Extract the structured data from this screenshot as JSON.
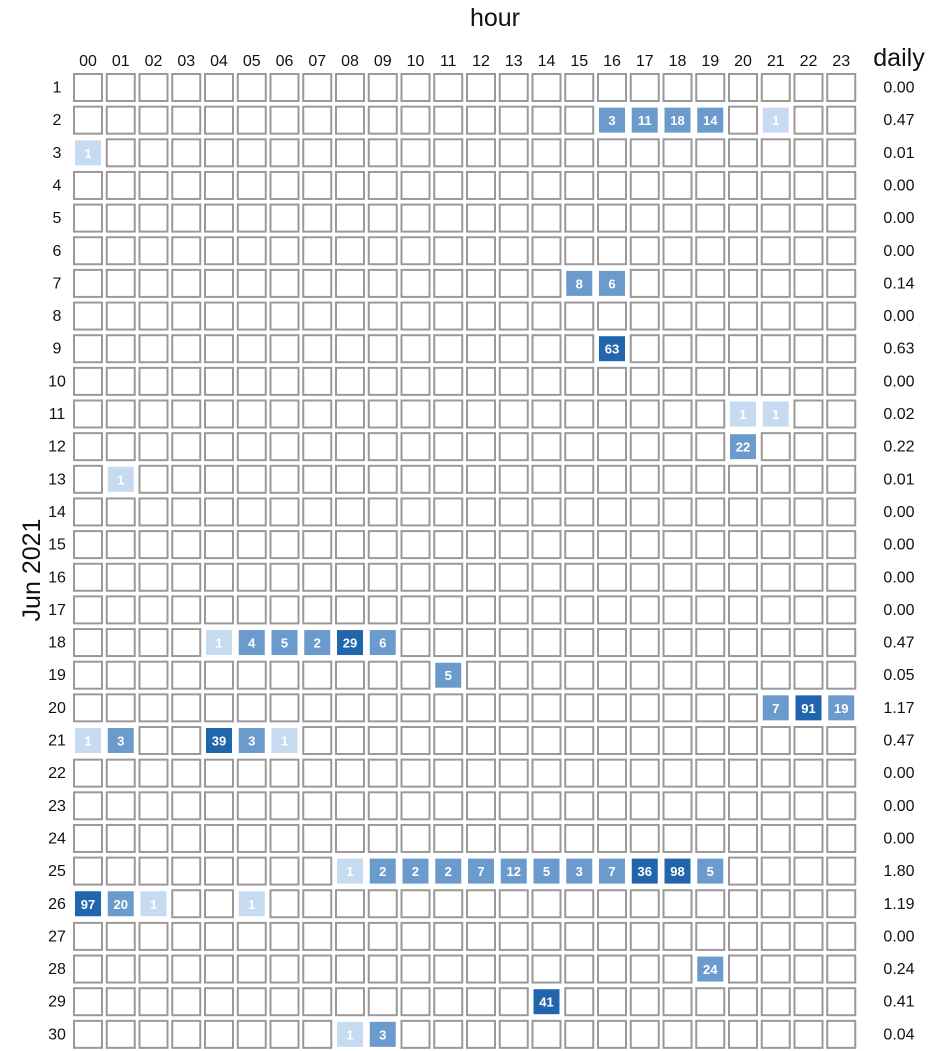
{
  "chart_data": {
    "type": "heatmap",
    "xlabel": "hour",
    "ylabel": "Jun 2021",
    "daily_label": "daily",
    "x": [
      "00",
      "01",
      "02",
      "03",
      "04",
      "05",
      "06",
      "07",
      "08",
      "09",
      "10",
      "11",
      "12",
      "13",
      "14",
      "15",
      "16",
      "17",
      "18",
      "19",
      "20",
      "21",
      "22",
      "23"
    ],
    "y": [
      "1",
      "2",
      "3",
      "4",
      "5",
      "6",
      "7",
      "8",
      "9",
      "10",
      "11",
      "12",
      "13",
      "14",
      "15",
      "16",
      "17",
      "18",
      "19",
      "20",
      "21",
      "22",
      "23",
      "24",
      "25",
      "26",
      "27",
      "28",
      "29",
      "30"
    ],
    "daily": [
      "0.00",
      "0.47",
      "0.01",
      "0.00",
      "0.00",
      "0.00",
      "0.14",
      "0.00",
      "0.63",
      "0.00",
      "0.02",
      "0.22",
      "0.01",
      "0.00",
      "0.00",
      "0.00",
      "0.00",
      "0.47",
      "0.05",
      "1.17",
      "0.47",
      "0.00",
      "0.00",
      "0.00",
      "1.80",
      "1.19",
      "0.00",
      "0.24",
      "0.41",
      "0.04"
    ],
    "cells": [
      {
        "day": "2",
        "hour": "16",
        "value": 3
      },
      {
        "day": "2",
        "hour": "17",
        "value": 11
      },
      {
        "day": "2",
        "hour": "18",
        "value": 18
      },
      {
        "day": "2",
        "hour": "19",
        "value": 14
      },
      {
        "day": "2",
        "hour": "21",
        "value": 1
      },
      {
        "day": "3",
        "hour": "00",
        "value": 1
      },
      {
        "day": "7",
        "hour": "15",
        "value": 8
      },
      {
        "day": "7",
        "hour": "16",
        "value": 6
      },
      {
        "day": "9",
        "hour": "16",
        "value": 63
      },
      {
        "day": "11",
        "hour": "20",
        "value": 1
      },
      {
        "day": "11",
        "hour": "21",
        "value": 1
      },
      {
        "day": "12",
        "hour": "20",
        "value": 22
      },
      {
        "day": "13",
        "hour": "01",
        "value": 1
      },
      {
        "day": "18",
        "hour": "04",
        "value": 1
      },
      {
        "day": "18",
        "hour": "05",
        "value": 4
      },
      {
        "day": "18",
        "hour": "06",
        "value": 5
      },
      {
        "day": "18",
        "hour": "07",
        "value": 2
      },
      {
        "day": "18",
        "hour": "08",
        "value": 29
      },
      {
        "day": "18",
        "hour": "09",
        "value": 6
      },
      {
        "day": "19",
        "hour": "11",
        "value": 5
      },
      {
        "day": "20",
        "hour": "21",
        "value": 7
      },
      {
        "day": "20",
        "hour": "22",
        "value": 91
      },
      {
        "day": "20",
        "hour": "23",
        "value": 19
      },
      {
        "day": "21",
        "hour": "00",
        "value": 1
      },
      {
        "day": "21",
        "hour": "01",
        "value": 3
      },
      {
        "day": "21",
        "hour": "04",
        "value": 39
      },
      {
        "day": "21",
        "hour": "05",
        "value": 3
      },
      {
        "day": "21",
        "hour": "06",
        "value": 1
      },
      {
        "day": "25",
        "hour": "08",
        "value": 1
      },
      {
        "day": "25",
        "hour": "09",
        "value": 2
      },
      {
        "day": "25",
        "hour": "10",
        "value": 2
      },
      {
        "day": "25",
        "hour": "11",
        "value": 2
      },
      {
        "day": "25",
        "hour": "12",
        "value": 7
      },
      {
        "day": "25",
        "hour": "13",
        "value": 12
      },
      {
        "day": "25",
        "hour": "14",
        "value": 5
      },
      {
        "day": "25",
        "hour": "15",
        "value": 3
      },
      {
        "day": "25",
        "hour": "16",
        "value": 7
      },
      {
        "day": "25",
        "hour": "17",
        "value": 36
      },
      {
        "day": "25",
        "hour": "18",
        "value": 98
      },
      {
        "day": "25",
        "hour": "19",
        "value": 5
      },
      {
        "day": "26",
        "hour": "00",
        "value": 97
      },
      {
        "day": "26",
        "hour": "01",
        "value": 20
      },
      {
        "day": "26",
        "hour": "02",
        "value": 1
      },
      {
        "day": "26",
        "hour": "05",
        "value": 1
      },
      {
        "day": "28",
        "hour": "19",
        "value": 24
      },
      {
        "day": "29",
        "hour": "14",
        "value": 41
      },
      {
        "day": "30",
        "hour": "08",
        "value": 1
      },
      {
        "day": "30",
        "hour": "09",
        "value": 3
      }
    ],
    "colors": {
      "empty_fill": "#ffffff",
      "cell_border": "#999999",
      "low": "#c6dbef",
      "mid": "#6b9bcc",
      "high": "#2166ac"
    },
    "grid": false,
    "legend": "none"
  }
}
